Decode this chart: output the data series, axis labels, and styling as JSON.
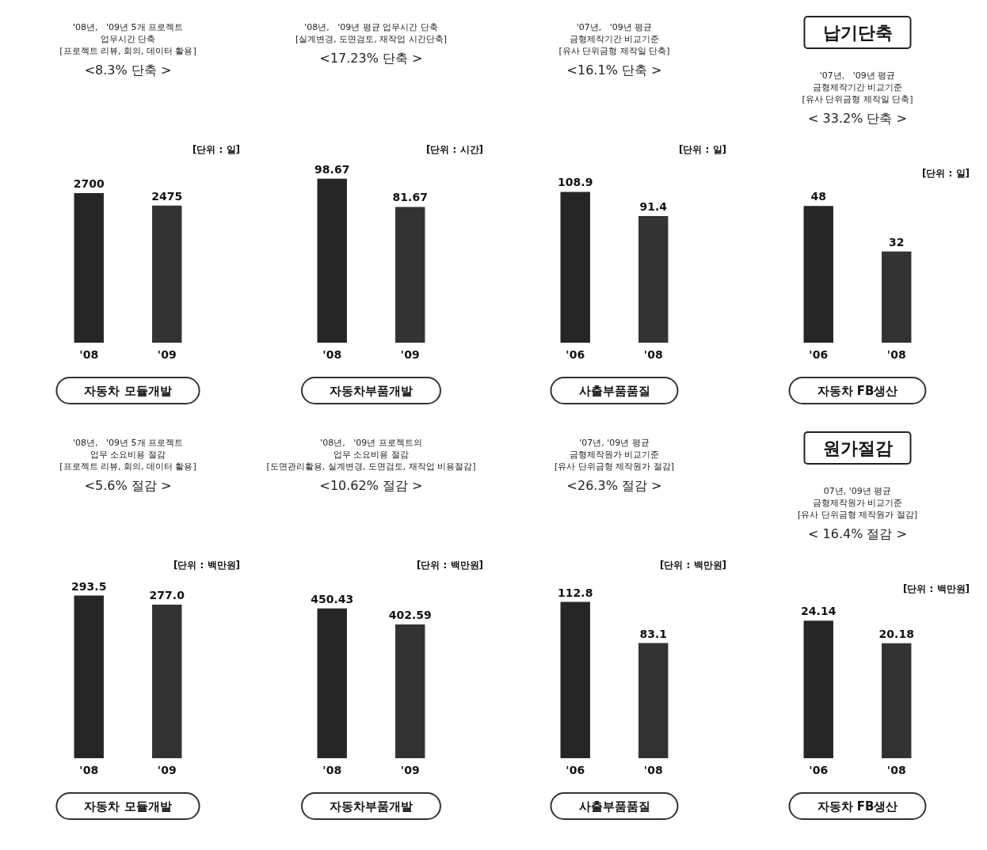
{
  "chart_data": [
    {
      "type": "bar",
      "title": "'08년,   '09년 5개 프로젝트\n업무시간 단축\n[프로젝트 리뷰, 회의, 데이터 활용]",
      "subtitle": "<8.3% 단축 >",
      "xlabel": "자동차 모듈개발",
      "categories": [
        "'08",
        "'09"
      ],
      "values": [
        2700,
        2475
      ],
      "colors": [
        "#262626",
        "#333333"
      ],
      "data_labels": true,
      "annotations": [
        "[단위 : 일]"
      ]
    },
    {
      "type": "bar",
      "title": "'08년,   '09년 평균 업무시간 단축\n[실계변경, 도면검토, 재작업 시간단축]",
      "subtitle": "<17.23% 단축 >",
      "xlabel": "자동차부품개발",
      "categories": [
        "'08",
        "'09"
      ],
      "values": [
        98.67,
        81.67
      ],
      "colors": [
        "#262626",
        "#333333"
      ],
      "data_labels": true,
      "annotations": [
        "[단위 : 시간]"
      ]
    },
    {
      "type": "bar",
      "title": "'07년,   '09년 평균\n금형제작기간 비교기준\n[유사 단위금형 제작일 단축]",
      "subtitle": "<16.1% 단축 >",
      "xlabel": "사출부품품질",
      "categories": [
        "'06",
        "'08"
      ],
      "values": [
        108.9,
        91.4
      ],
      "colors": [
        "#262626",
        "#333333"
      ],
      "data_labels": true,
      "annotations": [
        "[단위 : 일]"
      ]
    },
    {
      "type": "bar",
      "title": "'07년,   '09년 평균\n금형제작기간 비교기준\n[유사 단위금형 제작일 단축]",
      "subtitle": "< 33.2% 단축 >",
      "xlabel": "자동차 FB생산",
      "categories": [
        "'06",
        "'08"
      ],
      "values": [
        48,
        32
      ],
      "colors": [
        "#262626",
        "#333333"
      ],
      "data_labels": true,
      "annotations": [
        "[단위 : 일]",
        "납기단축"
      ]
    },
    {
      "type": "bar",
      "title": "'08년,   '09년 5개 프로젝트\n업무 소요비용 절감\n[프로젝트 리뷰, 회의, 데이터 활용]",
      "subtitle": "<5.6% 절감 >",
      "xlabel": "자동차 모듈개발",
      "categories": [
        "'08",
        "'09"
      ],
      "values": [
        293.5,
        277.0
      ],
      "value_labels": [
        "293.5",
        "277.0"
      ],
      "colors": [
        "#262626",
        "#333333"
      ],
      "annotations": [
        "[단위 : 백만원]"
      ]
    },
    {
      "type": "bar",
      "title": "'08년,   '09년 프로젝트의\n업무 소요비용 절감\n[도면관리활용, 실계변경, 도면검토, 재작업 비용절감]",
      "subtitle": "<10.62% 절감 >",
      "xlabel": "자동차부품개발",
      "categories": [
        "'08",
        "'09"
      ],
      "values": [
        450.43,
        402.59
      ],
      "colors": [
        "#262626",
        "#333333"
      ],
      "data_labels": true,
      "annotations": [
        "[단위 : 백만원]"
      ]
    },
    {
      "type": "bar",
      "title": "'07년, '09년 평균\n금형제작원가 비교기준\n[유사 단위금형 제작원가 절감]",
      "subtitle": "<26.3% 절감 >",
      "xlabel": "사출부품품질",
      "categories": [
        "'06",
        "'08"
      ],
      "values": [
        112.8,
        83.1
      ],
      "colors": [
        "#262626",
        "#333333"
      ],
      "data_labels": true,
      "annotations": [
        "[단위 : 백만원]"
      ]
    },
    {
      "type": "bar",
      "title": "07년, '09년 평균\n금형제작원가 비교기준\n[유사 단위금형 제작원가 절감]",
      "subtitle": "< 16.4% 절감 >",
      "xlabel": "자동차 FB생산",
      "categories": [
        "'06",
        "'08"
      ],
      "values": [
        24.14,
        20.18
      ],
      "colors": [
        "#262626",
        "#333333"
      ],
      "data_labels": true,
      "annotations": [
        "[단위 : 백만원]",
        "원가절감"
      ]
    }
  ]
}
